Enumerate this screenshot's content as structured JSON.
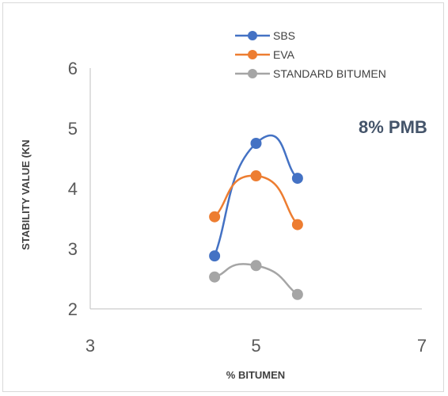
{
  "chart_data": {
    "type": "scatter",
    "title": "",
    "xlabel": "% BITUMEN",
    "ylabel": "STABILITY VALUE (KN",
    "xlim": [
      3,
      7
    ],
    "ylim": [
      2,
      6
    ],
    "xticks": [
      "3",
      "5",
      "7"
    ],
    "yticks": [
      "2",
      "3",
      "4",
      "5",
      "6"
    ],
    "annotation": "8% PMB",
    "legend_position": "top-center",
    "grid": false,
    "smooth_lines": true,
    "series": [
      {
        "name": "SBS",
        "color": "#4472c4",
        "x": [
          4.5,
          5.0,
          5.5
        ],
        "y": [
          2.88,
          4.75,
          4.17
        ]
      },
      {
        "name": "EVA",
        "color": "#ed7d31",
        "x": [
          4.5,
          5.0,
          5.5
        ],
        "y": [
          3.53,
          4.21,
          3.4
        ]
      },
      {
        "name": "STANDARD BITUMEN",
        "color": "#a5a5a5",
        "x": [
          4.5,
          5.0,
          5.5
        ],
        "y": [
          2.53,
          2.72,
          2.24
        ]
      }
    ]
  }
}
